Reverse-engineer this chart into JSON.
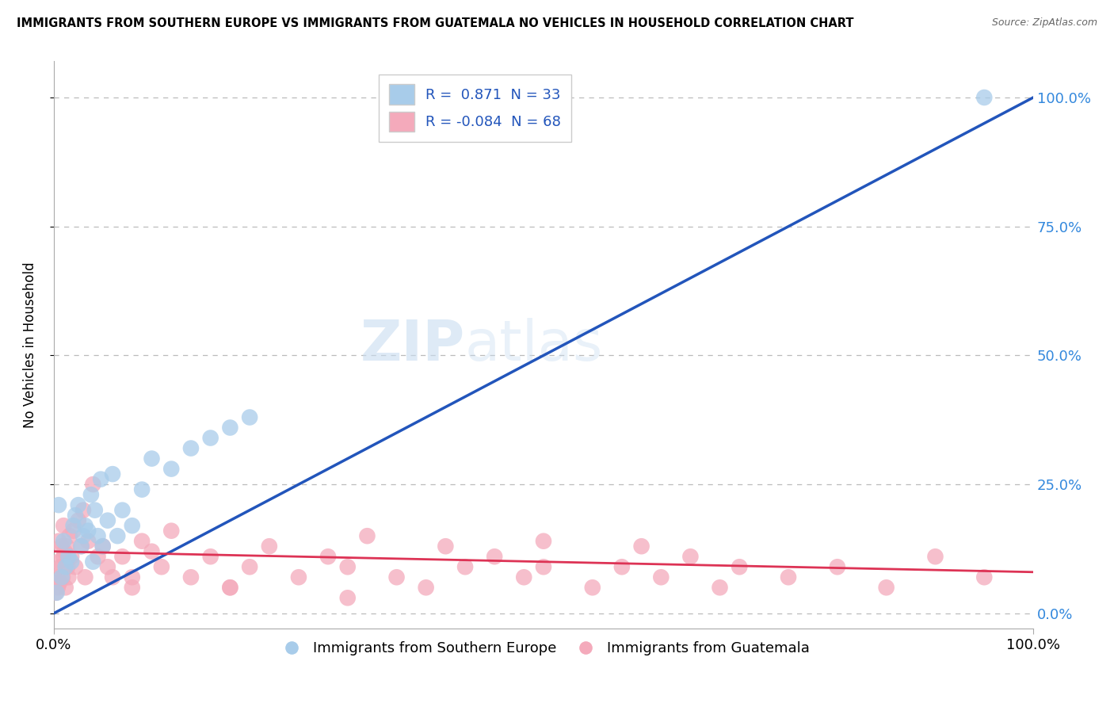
{
  "title": "IMMIGRANTS FROM SOUTHERN EUROPE VS IMMIGRANTS FROM GUATEMALA NO VEHICLES IN HOUSEHOLD CORRELATION CHART",
  "source": "Source: ZipAtlas.com",
  "ylabel": "No Vehicles in Household",
  "blue_R": 0.871,
  "blue_N": 33,
  "pink_R": -0.084,
  "pink_N": 68,
  "blue_color": "#A8CCEA",
  "pink_color": "#F4AABB",
  "blue_line_color": "#2255BB",
  "pink_line_color": "#DD3355",
  "watermark_zip": "ZIP",
  "watermark_atlas": "atlas",
  "blue_scatter_x": [
    0.3,
    0.5,
    0.8,
    1.0,
    1.2,
    1.5,
    1.8,
    2.0,
    2.2,
    2.5,
    2.8,
    3.0,
    3.2,
    3.5,
    3.8,
    4.0,
    4.2,
    4.5,
    4.8,
    5.0,
    5.5,
    6.0,
    6.5,
    7.0,
    8.0,
    9.0,
    10.0,
    12.0,
    14.0,
    16.0,
    18.0,
    20.0,
    95.0
  ],
  "blue_scatter_y": [
    4,
    21,
    7,
    14,
    9,
    11,
    10,
    17,
    19,
    21,
    13,
    15,
    17,
    16,
    23,
    10,
    20,
    15,
    26,
    13,
    18,
    27,
    15,
    20,
    17,
    24,
    30,
    28,
    32,
    34,
    36,
    38,
    100
  ],
  "pink_scatter_x": [
    0.2,
    0.3,
    0.4,
    0.5,
    0.5,
    0.6,
    0.7,
    0.8,
    0.9,
    1.0,
    1.0,
    1.1,
    1.2,
    1.3,
    1.4,
    1.5,
    1.6,
    1.8,
    2.0,
    2.2,
    2.5,
    2.8,
    3.0,
    3.2,
    3.5,
    4.0,
    4.5,
    5.0,
    5.5,
    6.0,
    7.0,
    8.0,
    9.0,
    10.0,
    11.0,
    12.0,
    14.0,
    16.0,
    18.0,
    20.0,
    22.0,
    25.0,
    28.0,
    30.0,
    32.0,
    35.0,
    38.0,
    40.0,
    42.0,
    45.0,
    48.0,
    50.0,
    55.0,
    58.0,
    60.0,
    62.0,
    65.0,
    68.0,
    70.0,
    75.0,
    80.0,
    85.0,
    90.0,
    95.0,
    50.0,
    30.0,
    18.0,
    8.0
  ],
  "pink_scatter_y": [
    4,
    7,
    5,
    10,
    14,
    6,
    9,
    13,
    7,
    17,
    11,
    12,
    5,
    13,
    9,
    7,
    15,
    11,
    16,
    9,
    18,
    13,
    20,
    7,
    14,
    25,
    11,
    13,
    9,
    7,
    11,
    5,
    14,
    12,
    9,
    16,
    7,
    11,
    5,
    9,
    13,
    7,
    11,
    9,
    15,
    7,
    5,
    13,
    9,
    11,
    7,
    14,
    5,
    9,
    13,
    7,
    11,
    5,
    9,
    7,
    9,
    5,
    11,
    7,
    9,
    3,
    5,
    7
  ],
  "xlim": [
    0,
    100
  ],
  "ylim": [
    -3,
    107
  ],
  "ytick_vals": [
    0,
    25,
    50,
    75,
    100
  ],
  "ytick_labels": [
    "0.0%",
    "25.0%",
    "50.0%",
    "75.0%",
    "100.0%"
  ],
  "xtick_vals": [
    0,
    100
  ],
  "xtick_labels": [
    "0.0%",
    "100.0%"
  ],
  "blue_line_x0": 0,
  "blue_line_y0": 0,
  "blue_line_x1": 100,
  "blue_line_y1": 100,
  "pink_line_x0": 0,
  "pink_line_y0": 12,
  "pink_line_x1": 100,
  "pink_line_y1": 8
}
